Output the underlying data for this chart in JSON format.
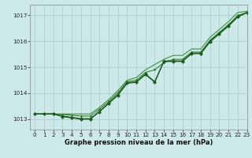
{
  "xlabel": "Graphe pression niveau de la mer (hPa)",
  "xlim": [
    -0.5,
    23
  ],
  "ylim": [
    1012.6,
    1017.4
  ],
  "yticks": [
    1013,
    1014,
    1015,
    1016,
    1017
  ],
  "xticks": [
    0,
    1,
    2,
    3,
    4,
    5,
    6,
    7,
    8,
    9,
    10,
    11,
    12,
    13,
    14,
    15,
    16,
    17,
    18,
    19,
    20,
    21,
    22,
    23
  ],
  "bg_color": "#cce8e8",
  "grid_color": "#aacccc",
  "smooth_line": [
    1013.2,
    1013.2,
    1013.2,
    1013.2,
    1013.2,
    1013.2,
    1013.2,
    1013.45,
    1013.75,
    1014.1,
    1014.5,
    1014.6,
    1014.9,
    1015.1,
    1015.3,
    1015.45,
    1015.45,
    1015.7,
    1015.7,
    1016.15,
    1016.45,
    1016.75,
    1017.1,
    1017.15
  ],
  "zigzag1": [
    1013.2,
    1013.2,
    1013.2,
    1013.1,
    1013.05,
    1013.0,
    1013.0,
    1013.28,
    1013.6,
    1013.92,
    1014.38,
    1014.42,
    1014.72,
    1014.42,
    1015.22,
    1015.22,
    1015.22,
    1015.52,
    1015.52,
    1015.98,
    1016.28,
    1016.58,
    1016.93,
    1017.1
  ],
  "zigzag2": [
    1013.2,
    1013.2,
    1013.2,
    1013.12,
    1013.07,
    1013.02,
    1013.02,
    1013.3,
    1013.62,
    1013.95,
    1014.4,
    1014.44,
    1014.74,
    1014.44,
    1015.24,
    1015.24,
    1015.24,
    1015.54,
    1015.54,
    1016.0,
    1016.3,
    1016.6,
    1016.95,
    1017.1
  ],
  "smooth2": [
    1013.2,
    1013.2,
    1013.2,
    1013.18,
    1013.15,
    1013.12,
    1013.12,
    1013.38,
    1013.68,
    1014.02,
    1014.44,
    1014.5,
    1014.8,
    1014.9,
    1015.18,
    1015.3,
    1015.3,
    1015.58,
    1015.58,
    1016.04,
    1016.34,
    1016.64,
    1016.99,
    1017.1
  ],
  "dark_green": "#1a5c1a",
  "mid_green": "#2d7a2d",
  "light_green": "#3d8b3d",
  "marker_size": 2.5,
  "line_width": 0.9,
  "tick_fontsize": 5.2,
  "label_fontsize": 6.0
}
